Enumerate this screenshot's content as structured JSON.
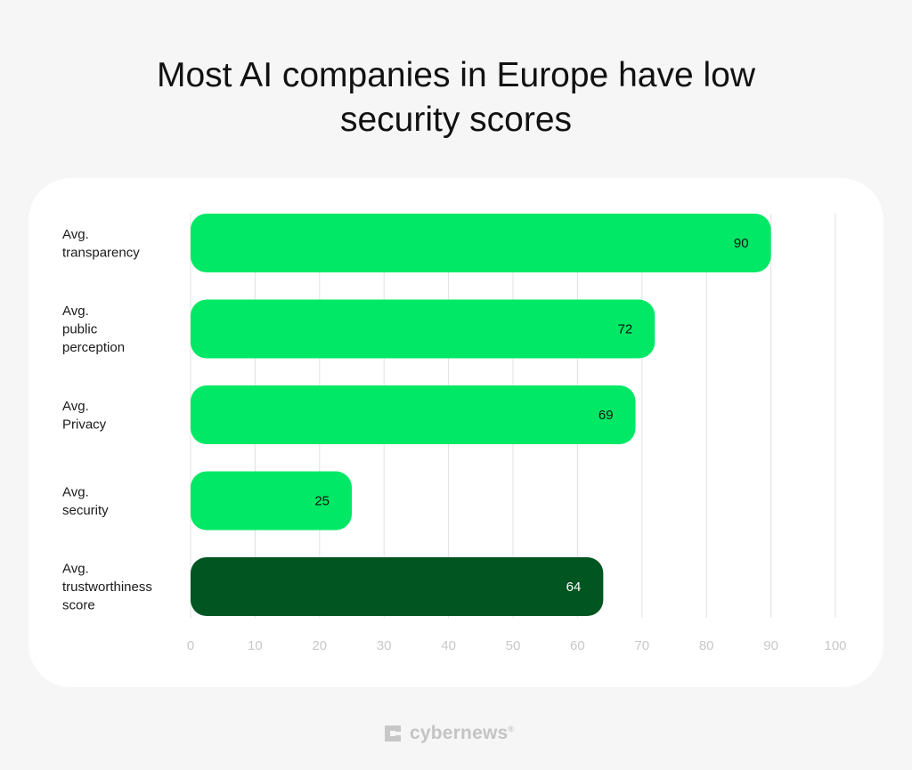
{
  "chart_data": {
    "type": "bar",
    "orientation": "horizontal",
    "title": "Most AI companies in Europe have low security scores",
    "categories": [
      [
        "Avg.",
        "transparency"
      ],
      [
        "Avg.",
        "public",
        "perception"
      ],
      [
        "Avg.",
        "Privacy"
      ],
      [
        "Avg.",
        "security"
      ],
      [
        "Avg.",
        "trustworthiness",
        "score"
      ]
    ],
    "values": [
      90,
      72,
      69,
      25,
      64
    ],
    "value_labels": [
      "90",
      "72",
      "69",
      "25",
      "64"
    ],
    "xlim": [
      0,
      100
    ],
    "xticks": [
      "0",
      "10",
      "20",
      "30",
      "40",
      "50",
      "60",
      "70",
      "80",
      "90",
      "100"
    ],
    "grid": "vertical",
    "bar_colors": [
      "#00e865",
      "#00e865",
      "#00e865",
      "#00e865",
      "#005521"
    ],
    "label_colors": [
      "#111111",
      "#111111",
      "#111111",
      "#111111",
      "#ffffff"
    ]
  },
  "branding": {
    "logo_text": "cybernews",
    "logo_mark": "®"
  },
  "colors": {
    "background": "#f6f6f6",
    "panel": "#ffffff",
    "grid": "#e0e0e0",
    "tick_text": "#c8c8c8",
    "category_text": "#1a1a1a"
  }
}
